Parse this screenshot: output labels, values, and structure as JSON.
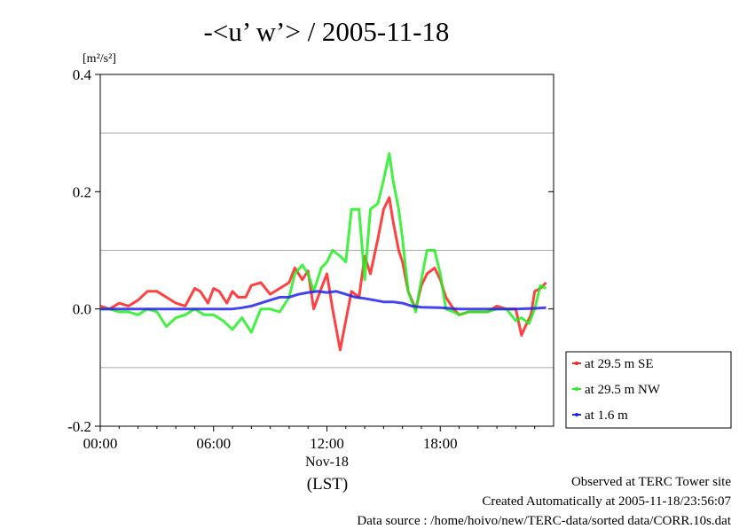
{
  "page": {
    "title": "-<u’ w’> / 2005-11-18",
    "unit_label": "[m²/s²]",
    "footer": {
      "observed": "Observed at TERC Tower site",
      "created": "Created Automatically at 2005-11-18/23:56:07",
      "source": "Data source : /home/hoivo/new/TERC-data/sorted  data/CORR.10s.dat"
    }
  },
  "chart_data": {
    "type": "line",
    "title": "-<u’ w’> / 2005-11-18",
    "ylabel": "[m²/s²]",
    "xlabel": "(LST)",
    "xlim": [
      0,
      24
    ],
    "ylim": [
      -0.2,
      0.4
    ],
    "x_ticks": [
      {
        "value": 0,
        "label": "00:00"
      },
      {
        "value": 6,
        "label": "06:00"
      },
      {
        "value": 12,
        "label": "12:00",
        "sublabel": "Nov-18"
      },
      {
        "value": 18,
        "label": "18:00"
      }
    ],
    "y_ticks": [
      {
        "value": -0.2,
        "label": "-0.2"
      },
      {
        "value": 0.0,
        "label": "0.0"
      },
      {
        "value": 0.2,
        "label": "0.2"
      },
      {
        "value": 0.4,
        "label": "0.4"
      }
    ],
    "grid": {
      "horizontal": [
        -0.1,
        0.1,
        0.3
      ]
    },
    "legend_position": "right",
    "series": [
      {
        "name": "at 29.5 m SE",
        "color": "#ff2020",
        "x": [
          0,
          0.5,
          1,
          1.5,
          2,
          2.5,
          3,
          3.5,
          4,
          4.5,
          5,
          5.3,
          5.7,
          6,
          6.3,
          6.7,
          7,
          7.3,
          7.7,
          8,
          8.5,
          9,
          9.5,
          10,
          10.3,
          10.7,
          11,
          11.3,
          11.7,
          12,
          12.3,
          12.7,
          13,
          13.3,
          13.7,
          14,
          14.3,
          14.7,
          15,
          15.3,
          15.5,
          15.8,
          16,
          16.3,
          16.7,
          17,
          17.3,
          17.7,
          18,
          18.3,
          18.7,
          19,
          19.5,
          20,
          20.5,
          21,
          21.5,
          22,
          22.3,
          22.5,
          22.8,
          23,
          23.3,
          23.6
        ],
        "y": [
          0.005,
          0.0,
          0.01,
          0.005,
          0.015,
          0.03,
          0.03,
          0.02,
          0.01,
          0.005,
          0.035,
          0.03,
          0.01,
          0.035,
          0.03,
          0.01,
          0.03,
          0.02,
          0.02,
          0.04,
          0.045,
          0.025,
          0.035,
          0.045,
          0.07,
          0.05,
          0.065,
          0.0,
          0.035,
          0.06,
          0.0,
          -0.07,
          -0.02,
          0.03,
          0.02,
          0.09,
          0.06,
          0.12,
          0.17,
          0.19,
          0.15,
          0.1,
          0.08,
          0.03,
          0.0,
          0.04,
          0.06,
          0.07,
          0.05,
          0.02,
          0.0,
          -0.01,
          -0.005,
          -0.005,
          -0.005,
          0.005,
          0.0,
          0.0,
          -0.045,
          -0.03,
          -0.01,
          0.03,
          0.035,
          0.045
        ]
      },
      {
        "name": "at 29.5 m NW",
        "color": "#22ee22",
        "x": [
          0,
          0.5,
          1,
          1.5,
          2,
          2.5,
          3,
          3.5,
          4,
          4.5,
          5,
          5.5,
          6,
          6.5,
          7,
          7.5,
          8,
          8.5,
          9,
          9.5,
          10,
          10.3,
          10.7,
          11,
          11.3,
          11.7,
          12,
          12.3,
          12.7,
          13,
          13.3,
          13.7,
          14,
          14.3,
          14.7,
          15,
          15.3,
          15.5,
          15.8,
          16,
          16.3,
          16.7,
          17,
          17.3,
          17.7,
          18,
          18.3,
          18.7,
          19,
          19.5,
          20,
          20.5,
          21,
          21.5,
          22,
          22.3,
          22.7,
          23,
          23.3,
          23.6
        ],
        "y": [
          0.0,
          0.0,
          -0.005,
          -0.005,
          -0.01,
          0.0,
          -0.005,
          -0.03,
          -0.015,
          -0.01,
          0.0,
          -0.01,
          -0.01,
          -0.02,
          -0.035,
          -0.015,
          -0.04,
          0.0,
          0.0,
          -0.005,
          0.02,
          0.06,
          0.075,
          0.06,
          0.03,
          0.07,
          0.08,
          0.1,
          0.09,
          0.08,
          0.17,
          0.17,
          0.05,
          0.17,
          0.18,
          0.22,
          0.265,
          0.22,
          0.17,
          0.12,
          0.03,
          -0.005,
          0.05,
          0.1,
          0.1,
          0.06,
          0.0,
          -0.005,
          -0.01,
          -0.005,
          -0.005,
          -0.005,
          0.0,
          0.0,
          -0.02,
          -0.015,
          -0.025,
          0.0,
          0.04,
          0.035
        ]
      },
      {
        "name": "at 1.6 m",
        "color": "#2222ee",
        "x": [
          0,
          1,
          2,
          3,
          4,
          5,
          6,
          7,
          7.5,
          8,
          8.5,
          9,
          9.5,
          10,
          10.5,
          11,
          11.5,
          12,
          12.5,
          13,
          13.5,
          14,
          14.5,
          15,
          15.5,
          16,
          16.5,
          17,
          18,
          19,
          20,
          21,
          22,
          23,
          23.6
        ],
        "y": [
          0.0,
          0.0,
          0.0,
          0.0,
          0.0,
          0.0,
          0.0,
          0.0,
          0.002,
          0.005,
          0.01,
          0.015,
          0.02,
          0.02,
          0.025,
          0.028,
          0.03,
          0.028,
          0.03,
          0.025,
          0.02,
          0.018,
          0.015,
          0.012,
          0.012,
          0.01,
          0.005,
          0.003,
          0.002,
          0.0,
          0.0,
          0.0,
          0.0,
          0.001,
          0.002
        ]
      }
    ]
  }
}
